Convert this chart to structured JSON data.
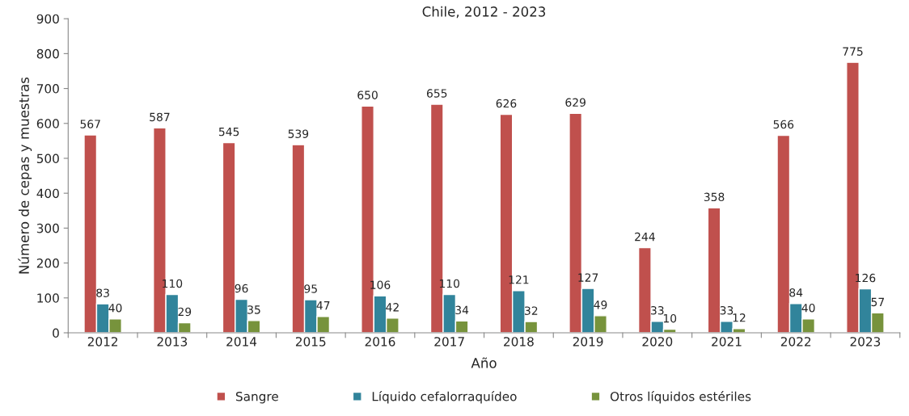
{
  "chart_data": {
    "type": "bar",
    "title": "Chile, 2012 - 2023",
    "xlabel": "Año",
    "ylabel": "Número de cepas y muestras",
    "categories": [
      "2012",
      "2013",
      "2014",
      "2015",
      "2016",
      "2017",
      "2018",
      "2019",
      "2020",
      "2021",
      "2022",
      "2023"
    ],
    "series": [
      {
        "name": "Sangre",
        "color": "#c0504d",
        "values": [
          567,
          587,
          545,
          539,
          650,
          655,
          626,
          629,
          244,
          358,
          566,
          775
        ]
      },
      {
        "name": "Líquido cefalorraquídeo",
        "color": "#31849b",
        "values": [
          83,
          110,
          96,
          95,
          106,
          110,
          121,
          127,
          33,
          33,
          84,
          126
        ]
      },
      {
        "name": "Otros líquidos estériles",
        "color": "#77933c",
        "values": [
          40,
          29,
          35,
          47,
          42,
          34,
          32,
          49,
          10,
          12,
          40,
          57
        ]
      }
    ],
    "ylim": [
      0,
      900
    ],
    "yticks": [
      0,
      100,
      200,
      300,
      400,
      500,
      600,
      700,
      800,
      900
    ],
    "grid": false,
    "legend": "bottom",
    "data_labels": true
  }
}
